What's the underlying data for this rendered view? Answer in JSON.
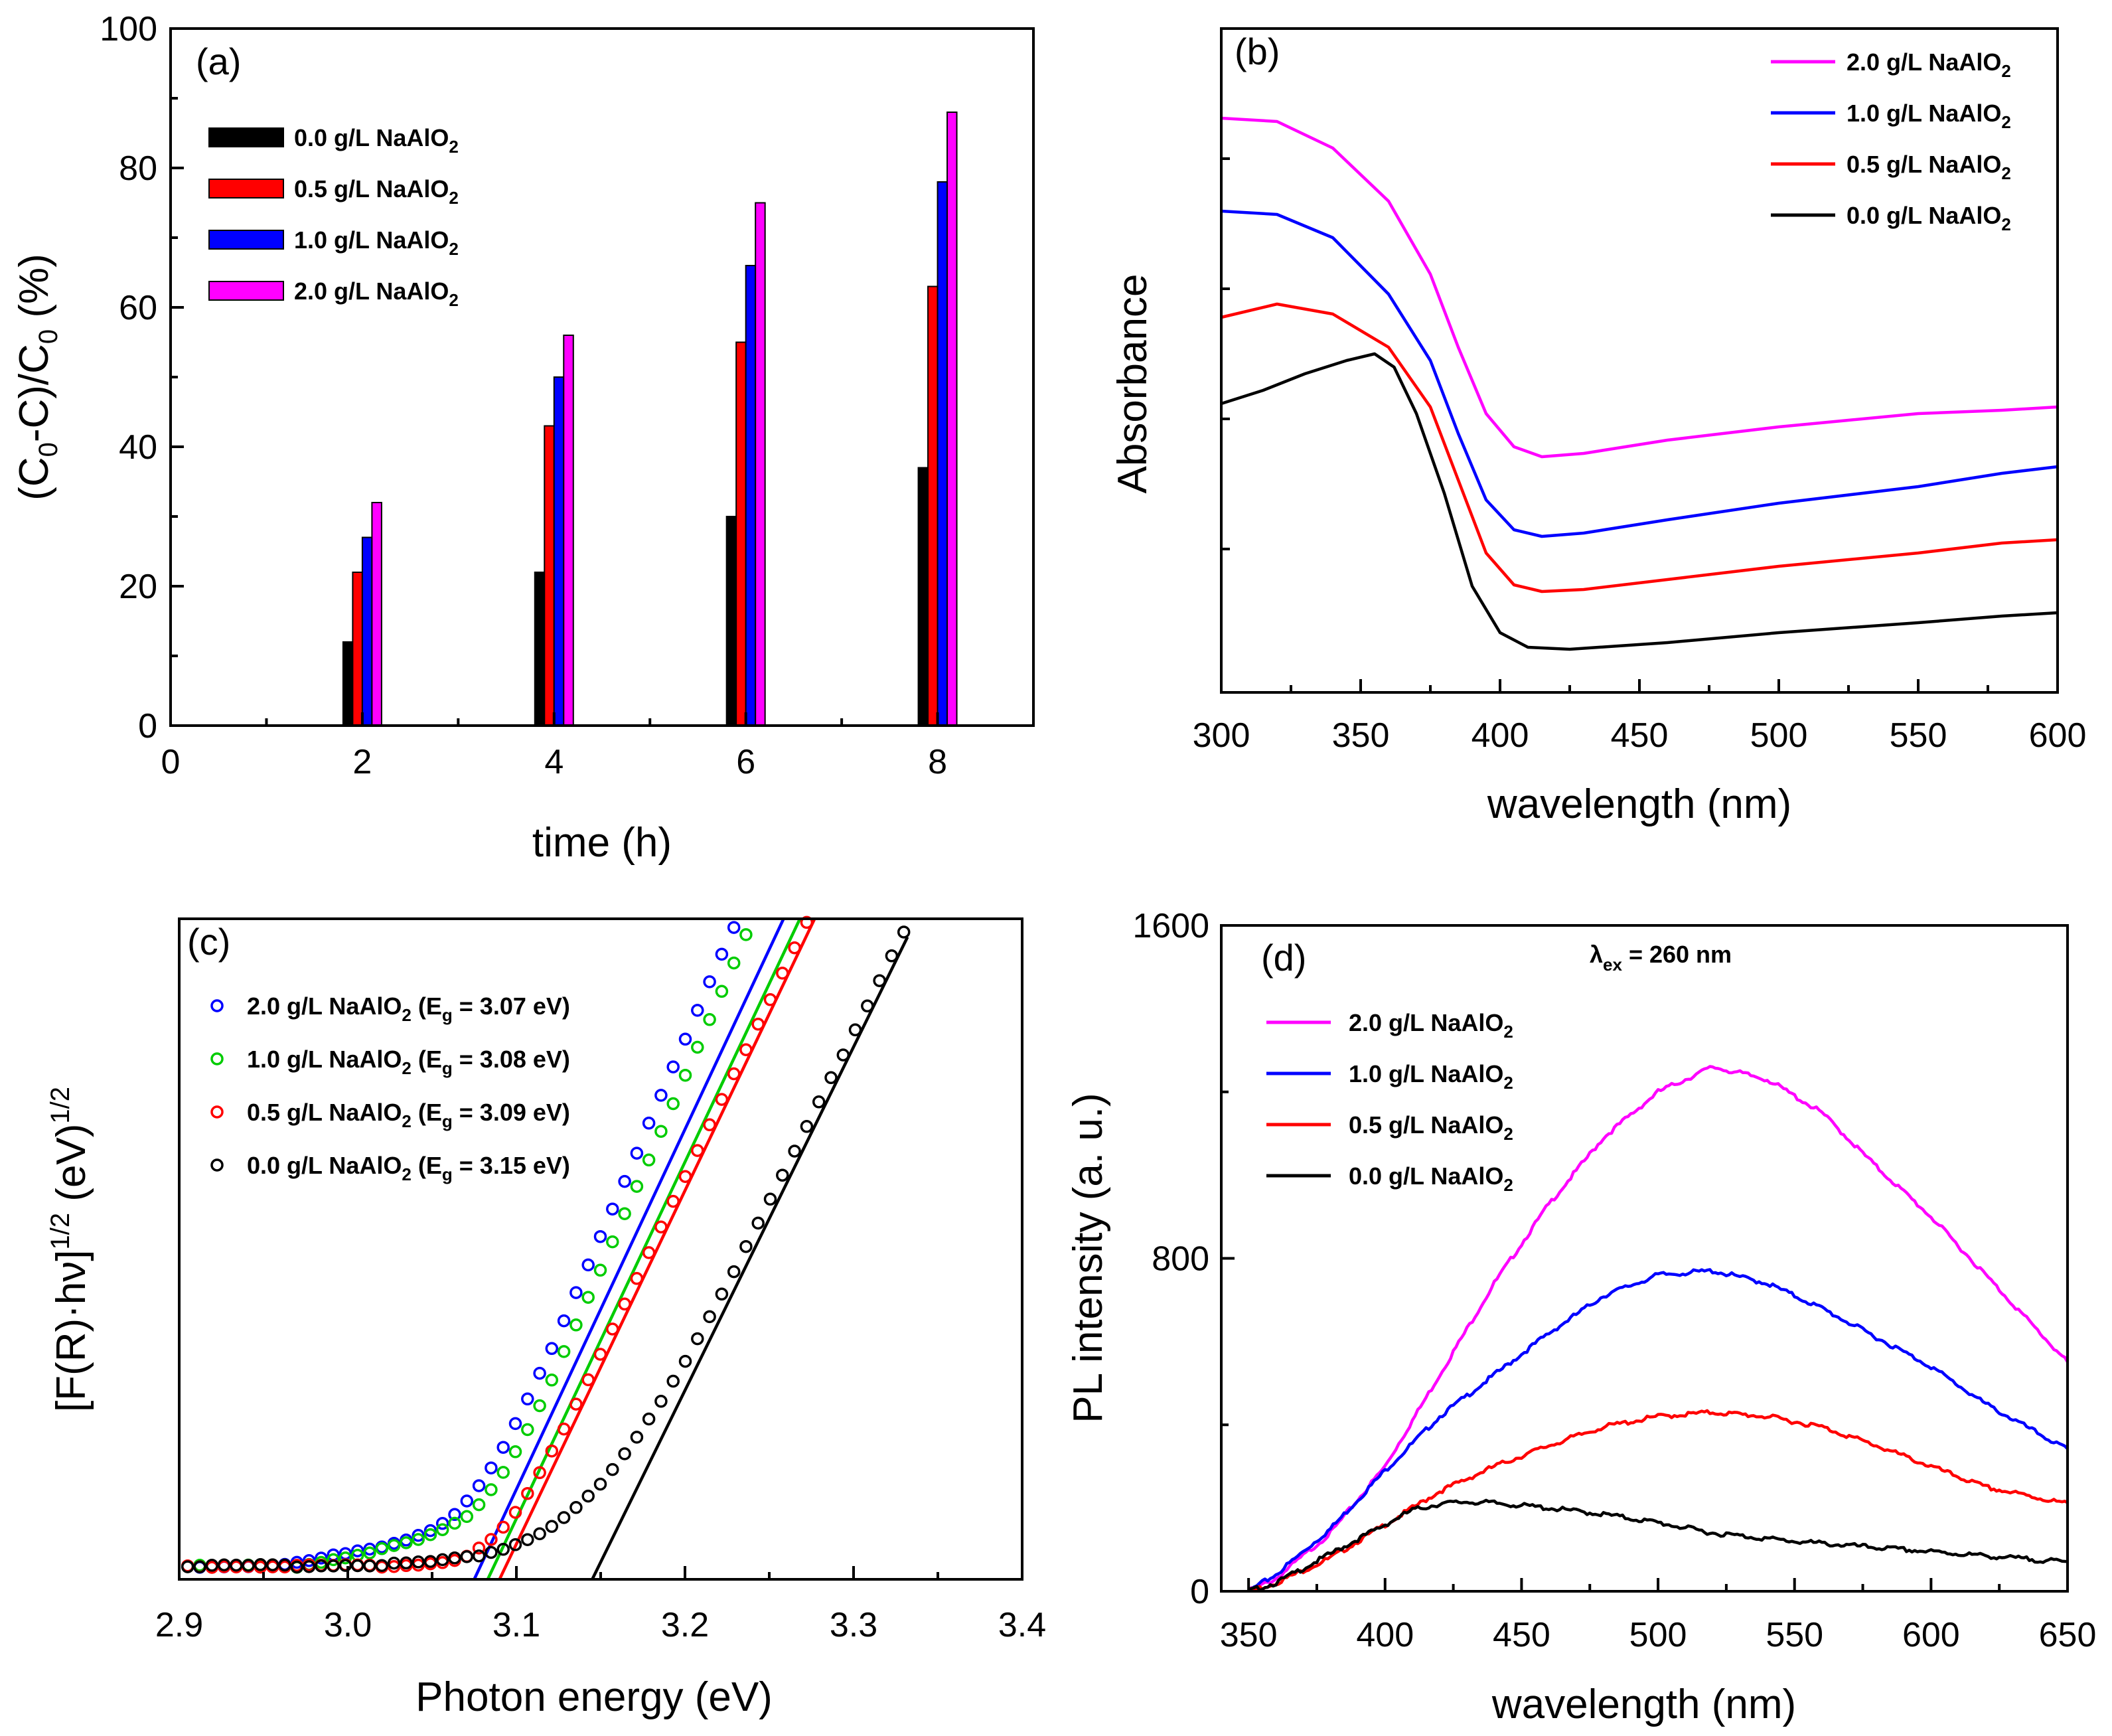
{
  "chart_data": [
    {
      "panel": "(a)",
      "type": "bar",
      "xlabel": "time (h)",
      "ylabel": "(C0-C)/C0 (%)",
      "xlim": [
        0,
        9
      ],
      "ylim": [
        0,
        100
      ],
      "xticks": [
        "0",
        "2",
        "4",
        "6",
        "8"
      ],
      "yticks": [
        "0",
        "20",
        "40",
        "60",
        "80",
        "100"
      ],
      "categories": [
        2,
        4,
        6,
        8
      ],
      "series": [
        {
          "name": "0.0 g/L NaAlO2",
          "label": "0.0 g/L NaAlO",
          "sub": "2",
          "color": "#000000",
          "values": [
            12,
            22,
            30,
            37
          ]
        },
        {
          "name": "0.5 g/L NaAlO2",
          "label": "0.5 g/L NaAlO",
          "sub": "2",
          "color": "#ff0000",
          "values": [
            22,
            43,
            55,
            63
          ]
        },
        {
          "name": "1.0 g/L NaAlO2",
          "label": "1.0 g/L NaAlO",
          "sub": "2",
          "color": "#0000ff",
          "values": [
            27,
            50,
            66,
            78
          ]
        },
        {
          "name": "2.0 g/L NaAlO2",
          "label": "2.0 g/L NaAlO",
          "sub": "2",
          "color": "#ff00ff",
          "values": [
            32,
            56,
            75,
            88
          ]
        }
      ]
    },
    {
      "panel": "(b)",
      "type": "line",
      "xlabel": "wavelength (nm)",
      "ylabel": "Absorbance",
      "xlim": [
        300,
        600
      ],
      "ylim": [
        0,
        1.0
      ],
      "xticks": [
        "300",
        "350",
        "400",
        "450",
        "500",
        "550",
        "600"
      ],
      "series": [
        {
          "name": "2.0 g/L NaAlO2",
          "label": "2.0 g/L NaAlO",
          "sub": "2",
          "color": "#ff00ff",
          "x": [
            300,
            320,
            340,
            360,
            375,
            385,
            395,
            405,
            415,
            430,
            460,
            500,
            550,
            580,
            600
          ],
          "y": [
            0.865,
            0.86,
            0.82,
            0.74,
            0.63,
            0.52,
            0.42,
            0.37,
            0.355,
            0.36,
            0.38,
            0.4,
            0.42,
            0.425,
            0.43
          ]
        },
        {
          "name": "1.0 g/L NaAlO2",
          "label": "1.0 g/L NaAlO",
          "sub": "2",
          "color": "#0000ff",
          "x": [
            300,
            320,
            340,
            360,
            375,
            385,
            395,
            405,
            415,
            430,
            460,
            500,
            550,
            580,
            600
          ],
          "y": [
            0.725,
            0.72,
            0.685,
            0.6,
            0.5,
            0.39,
            0.29,
            0.245,
            0.235,
            0.24,
            0.26,
            0.285,
            0.31,
            0.33,
            0.34
          ]
        },
        {
          "name": "0.5 g/L NaAlO2",
          "label": "0.5 g/L NaAlO",
          "sub": "2",
          "color": "#ff0000",
          "x": [
            300,
            320,
            340,
            360,
            375,
            385,
            395,
            405,
            415,
            430,
            460,
            500,
            550,
            580,
            600
          ],
          "y": [
            0.565,
            0.585,
            0.57,
            0.52,
            0.43,
            0.32,
            0.21,
            0.162,
            0.152,
            0.155,
            0.17,
            0.19,
            0.21,
            0.225,
            0.23
          ]
        },
        {
          "name": "0.0 g/L NaAlO2",
          "label": "0.0 g/L NaAlO",
          "sub": "2",
          "color": "#000000",
          "x": [
            300,
            315,
            330,
            345,
            355,
            362,
            370,
            380,
            390,
            400,
            410,
            425,
            460,
            500,
            550,
            580,
            600
          ],
          "y": [
            0.435,
            0.455,
            0.48,
            0.5,
            0.51,
            0.49,
            0.42,
            0.3,
            0.16,
            0.09,
            0.068,
            0.065,
            0.075,
            0.09,
            0.105,
            0.115,
            0.12
          ]
        }
      ]
    },
    {
      "panel": "(c)",
      "type": "scatter",
      "xlabel": "Photon energy (eV)",
      "ylabel": "[F(R)·hν]1/2 (eV)1/2",
      "xlim": [
        2.9,
        3.4
      ],
      "ylim": [
        0,
        1.0
      ],
      "xticks": [
        "2.9",
        "3.0",
        "3.1",
        "3.2",
        "3.3",
        "3.4"
      ],
      "series": [
        {
          "name": "2.0 g/L NaAlO2 (Eg = 3.07 eV)",
          "color": "#0000ff",
          "eg": 3.075,
          "slope": 5.45,
          "end": 3.265,
          "onset": 2.96,
          "bend": 0.08,
          "tail": 0.012,
          "label": {
            "a": "2.0 g/L NaAlO",
            "b": " (E",
            "c": " = 3.07 eV)"
          }
        },
        {
          "name": "1.0 g/L NaAlO2 (Eg = 3.08 eV)",
          "color": "#00cc00",
          "eg": 3.083,
          "slope": 5.4,
          "end": 3.28,
          "onset": 2.97,
          "bend": 0.08,
          "tail": 0.012,
          "label": {
            "a": "1.0 g/L NaAlO",
            "b": " (E",
            "c": " = 3.08 eV)"
          }
        },
        {
          "name": "0.5 g/L NaAlO2 (Eg = 3.09 eV)",
          "color": "#ff0000",
          "eg": 3.09,
          "slope": 5.35,
          "end": 3.295,
          "onset": 2.985,
          "bend": 0.075,
          "tail": 0.0,
          "label": {
            "a": "0.5 g/L NaAlO",
            "b": " (E",
            "c": " = 3.09 eV)"
          }
        },
        {
          "name": "0.0 g/L NaAlO2 (Eg = 3.15 eV)",
          "color": "#000000",
          "eg": 3.145,
          "slope": 5.2,
          "end": 3.332,
          "onset": 3.0,
          "bend": 0.16,
          "tail": 0.0,
          "label": {
            "a": "0.0 g/L NaAlO",
            "b": " (E",
            "c": " = 3.15 eV)"
          }
        }
      ],
      "sub2": "2",
      "subg": "g"
    },
    {
      "panel": "(d)",
      "type": "line",
      "xlabel": "wavelength (nm)",
      "ylabel": "PL intensity (a. u.)",
      "xlim": [
        340,
        650
      ],
      "ylim": [
        0,
        1600
      ],
      "xticks": [
        "350",
        "400",
        "450",
        "500",
        "550",
        "600",
        "650"
      ],
      "yticks": [
        "0",
        "800",
        "1600"
      ],
      "annotation": {
        "a": "λ",
        "b": "ex",
        "c": " = 260 nm"
      },
      "series": [
        {
          "name": "2.0 g/L NaAlO2",
          "label": "2.0 g/L NaAlO",
          "sub": "2",
          "color": "#ff00ff",
          "x": [
            350,
            360,
            380,
            400,
            420,
            440,
            460,
            480,
            500,
            520,
            540,
            560,
            580,
            600,
            620,
            650
          ],
          "y": [
            0,
            30,
            140,
            300,
            520,
            740,
            930,
            1090,
            1200,
            1260,
            1230,
            1150,
            1020,
            900,
            760,
            550
          ]
        },
        {
          "name": "1.0 g/L NaAlO2",
          "label": "1.0 g/L NaAlO",
          "sub": "2",
          "color": "#0000ff",
          "x": [
            350,
            360,
            380,
            400,
            420,
            440,
            460,
            480,
            500,
            520,
            540,
            560,
            580,
            600,
            620,
            650
          ],
          "y": [
            0,
            40,
            150,
            290,
            420,
            520,
            620,
            710,
            760,
            770,
            740,
            680,
            610,
            540,
            450,
            340
          ]
        },
        {
          "name": "0.5 g/L NaAlO2",
          "label": "0.5 g/L NaAlO",
          "sub": "2",
          "color": "#ff0000",
          "x": [
            350,
            360,
            380,
            400,
            420,
            440,
            460,
            480,
            500,
            520,
            540,
            560,
            580,
            600,
            620,
            650
          ],
          "y": [
            0,
            20,
            80,
            160,
            240,
            300,
            350,
            395,
            420,
            430,
            420,
            395,
            350,
            300,
            250,
            210
          ]
        },
        {
          "name": "0.0 g/L NaAlO2",
          "label": "0.0 g/L NaAlO",
          "sub": "2",
          "color": "#000000",
          "x": [
            350,
            360,
            380,
            400,
            410,
            420,
            430,
            440,
            460,
            480,
            500,
            520,
            550,
            600,
            650
          ],
          "y": [
            0,
            20,
            90,
            160,
            195,
            210,
            215,
            212,
            200,
            185,
            165,
            140,
            120,
            95,
            70
          ]
        }
      ]
    }
  ],
  "subscripts": {
    "zero": "0",
    "half": "1/2"
  },
  "axis_a": {
    "p1": "(C",
    "p2": "-C)/C",
    "p3": " (%)"
  },
  "axis_c": {
    "p1": "[F(R)·hν]",
    "p2": " (eV)"
  }
}
